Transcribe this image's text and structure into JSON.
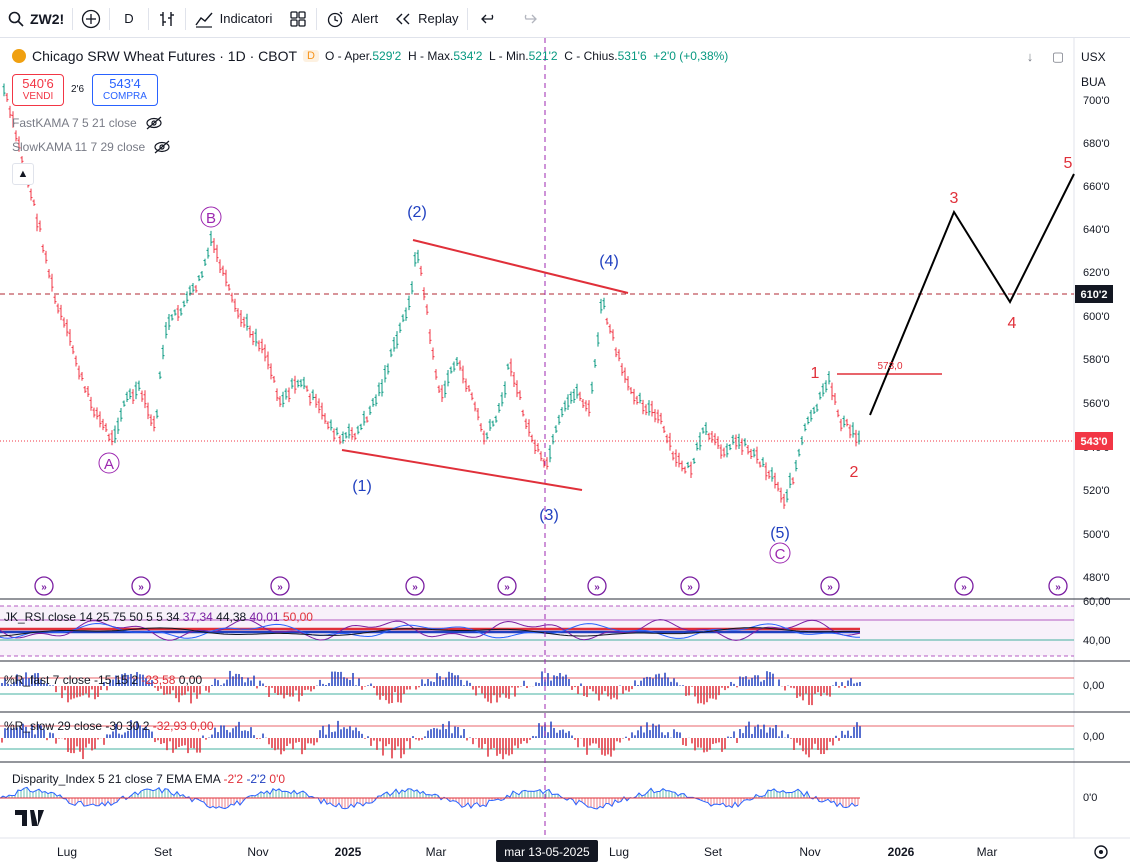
{
  "toolbar": {
    "symbol": "ZW2!",
    "interval": "D",
    "indicators_label": "Indicatori",
    "alert_label": "Alert",
    "replay_label": "Replay"
  },
  "legend": {
    "title": "Chicago SRW Wheat Futures · 1D · CBOT",
    "badge": "D",
    "open_label": "O - Aper.",
    "open": "529'2",
    "high_label": "H - Max.",
    "high": "534'2",
    "low_label": "L - Min.",
    "low": "521'2",
    "close_label": "C - Chius.",
    "close": "531'6",
    "change": "+2'0 (+0,38%)"
  },
  "trade": {
    "sell_price": "540'6",
    "sell_label": "VENDI",
    "spread": "2'6",
    "buy_price": "543'4",
    "buy_label": "COMPRA"
  },
  "indicators_legend": {
    "fast_kama": "FastKAMA 7 5 21 close",
    "slow_kama": "SlowKAMA 11 7 29 close"
  },
  "currency": {
    "unit": "USX",
    "label": "BUA"
  },
  "price_axis": [
    "700'0",
    "680'0",
    "660'0",
    "640'0",
    "620'0",
    "600'0",
    "580'0",
    "560'0",
    "540'0",
    "520'0",
    "500'0",
    "480'0"
  ],
  "price_tags": {
    "line": "610'2",
    "last": "543'0"
  },
  "time_axis": [
    "Lug",
    "Set",
    "Nov",
    "2025",
    "Mar",
    "Lug",
    "Set",
    "Nov",
    "2026",
    "Mar"
  ],
  "crosshair_date": "mar 13-05-2025",
  "waves": {
    "A": "A",
    "B": "B",
    "C": "C",
    "w1": "(1)",
    "w2": "(2)",
    "w3": "(3)",
    "w4": "(4)",
    "w5": "(5)",
    "p1": "1",
    "p2": "2",
    "p3": "3",
    "p4": "4",
    "p5": "5",
    "level": "573,0"
  },
  "panes": {
    "rsi": {
      "label": "JK_RSI close 14 25 75 50 5 5 34",
      "v1": "37,34",
      "v2": "44,38",
      "v3": "40,01",
      "v4": "50,00",
      "axis_top": "60,00",
      "axis_mid": "40,00"
    },
    "wr_fast": {
      "label": "%R_fast 7 close -15 15 2",
      "v1": "-23,58",
      "v2": "0,00",
      "axis": "0,00"
    },
    "wr_slow": {
      "label": "%R_slow 29 close -30 30 2",
      "v1": "-32,93",
      "v2": "0,00",
      "axis": "0,00"
    },
    "disparity": {
      "label": "Disparity_Index 5 21 close 7 EMA EMA",
      "v1": "-2'2",
      "v2": "-2'2",
      "v3": "0'0",
      "axis": "0'0"
    }
  },
  "colors": {
    "up": "#089981",
    "down": "#f23645",
    "wave_blue": "#2040c0",
    "wave_purple": "#9c27b0",
    "wave_red": "#e0303a",
    "accent": "#2962ff"
  }
}
